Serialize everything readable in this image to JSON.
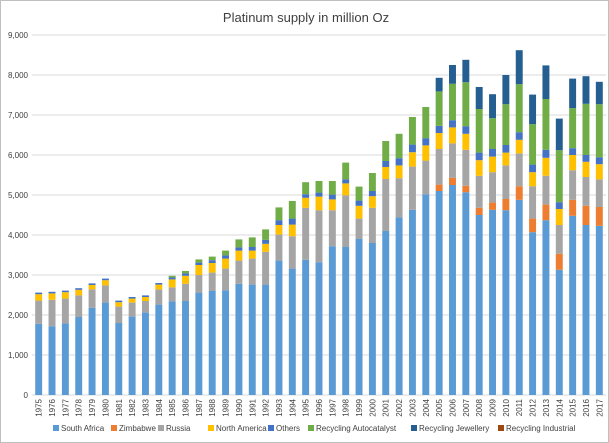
{
  "chart_data": {
    "type": "bar",
    "stacked": true,
    "title": "Platinum supply in million Oz",
    "xlabel": "",
    "ylabel": "",
    "ylim": [
      0,
      9000
    ],
    "yticks": [
      0,
      1000,
      2000,
      3000,
      4000,
      5000,
      6000,
      7000,
      8000,
      9000
    ],
    "ytick_labels": [
      "0",
      "1,000",
      "2,000",
      "3,000",
      "4,000",
      "5,000",
      "6,000",
      "7,000",
      "8,000",
      "9,000"
    ],
    "grid": true,
    "legend_position": "bottom",
    "categories": [
      "1975",
      "1976",
      "1977",
      "1978",
      "1979",
      "1980",
      "1981",
      "1982",
      "1983",
      "1984",
      "1985",
      "1986",
      "1987",
      "1988",
      "1989",
      "1990",
      "1991",
      "1992",
      "1993",
      "1994",
      "1995",
      "1996",
      "1997",
      "1998",
      "1999",
      "2000",
      "2001",
      "2002",
      "2003",
      "2004",
      "2005",
      "2006",
      "2007",
      "2008",
      "2009",
      "2010",
      "2011",
      "2012",
      "2013",
      "2014",
      "2015",
      "2016",
      "2017"
    ],
    "series": [
      {
        "name": "South Africa",
        "color": "#5b9bd5",
        "values": [
          1780,
          1720,
          1790,
          1950,
          2180,
          2310,
          1800,
          1960,
          2060,
          2260,
          2340,
          2350,
          2560,
          2600,
          2620,
          2780,
          2760,
          2760,
          3360,
          3160,
          3380,
          3320,
          3720,
          3700,
          3900,
          3800,
          4100,
          4440,
          4630,
          5020,
          5100,
          5250,
          5070,
          4500,
          4630,
          4620,
          4880,
          4070,
          4370,
          3130,
          4480,
          4250,
          4230
        ]
      },
      {
        "name": "Zimbabwe",
        "color": "#ed7d31",
        "values": [
          0,
          0,
          0,
          0,
          0,
          0,
          0,
          0,
          0,
          0,
          0,
          0,
          0,
          0,
          0,
          0,
          0,
          0,
          0,
          0,
          0,
          0,
          0,
          0,
          0,
          0,
          0,
          0,
          0,
          0,
          160,
          180,
          160,
          180,
          180,
          280,
          340,
          340,
          390,
          400,
          400,
          480,
          470
        ]
      },
      {
        "name": "Russia",
        "color": "#a5a5a5",
        "values": [
          580,
          660,
          620,
          540,
          460,
          430,
          410,
          350,
          290,
          380,
          350,
          430,
          440,
          460,
          540,
          580,
          650,
          820,
          650,
          810,
          1300,
          1300,
          900,
          1290,
          510,
          880,
          1300,
          980,
          1080,
          840,
          890,
          860,
          900,
          800,
          760,
          840,
          820,
          810,
          720,
          720,
          740,
          720,
          690
        ]
      },
      {
        "name": "North America",
        "color": "#ffc000",
        "values": [
          160,
          160,
          160,
          140,
          110,
          130,
          110,
          100,
          100,
          120,
          200,
          200,
          250,
          240,
          250,
          250,
          200,
          200,
          240,
          290,
          250,
          340,
          270,
          300,
          320,
          290,
          300,
          320,
          360,
          380,
          400,
          400,
          400,
          390,
          390,
          320,
          340,
          350,
          450,
          400,
          380,
          380,
          380
        ]
      },
      {
        "name": "Others",
        "color": "#4472c4",
        "values": [
          40,
          40,
          40,
          40,
          40,
          40,
          40,
          40,
          40,
          40,
          50,
          60,
          60,
          70,
          80,
          80,
          90,
          100,
          120,
          150,
          90,
          100,
          120,
          100,
          130,
          130,
          150,
          180,
          190,
          180,
          180,
          180,
          190,
          190,
          190,
          190,
          190,
          190,
          200,
          170,
          170,
          170,
          170
        ]
      },
      {
        "name": "Recycling Autocatalyst",
        "color": "#70ad47",
        "values": [
          0,
          0,
          0,
          0,
          0,
          0,
          0,
          0,
          0,
          0,
          40,
          60,
          80,
          90,
          120,
          200,
          240,
          260,
          320,
          440,
          300,
          290,
          340,
          420,
          350,
          450,
          500,
          610,
          690,
          780,
          860,
          910,
          1100,
          1090,
          770,
          1020,
          1200,
          1010,
          1270,
          1300,
          1000,
          1280,
          1330
        ]
      },
      {
        "name": "Recycling Jewellery",
        "color": "#255e91",
        "values": [
          0,
          0,
          0,
          0,
          0,
          0,
          0,
          0,
          0,
          0,
          0,
          0,
          0,
          0,
          0,
          0,
          0,
          0,
          0,
          0,
          0,
          0,
          0,
          0,
          0,
          0,
          0,
          0,
          0,
          0,
          340,
          470,
          560,
          550,
          600,
          730,
          850,
          740,
          840,
          790,
          740,
          690,
          560
        ]
      },
      {
        "name": "Recycling Industrial",
        "color": "#9e480e",
        "values": [
          0,
          0,
          0,
          0,
          0,
          0,
          0,
          0,
          0,
          0,
          0,
          0,
          0,
          0,
          0,
          0,
          0,
          0,
          0,
          0,
          0,
          0,
          0,
          0,
          0,
          0,
          0,
          0,
          0,
          0,
          0,
          0,
          0,
          0,
          0,
          0,
          0,
          0,
          0,
          0,
          0,
          0,
          0
        ]
      }
    ]
  }
}
